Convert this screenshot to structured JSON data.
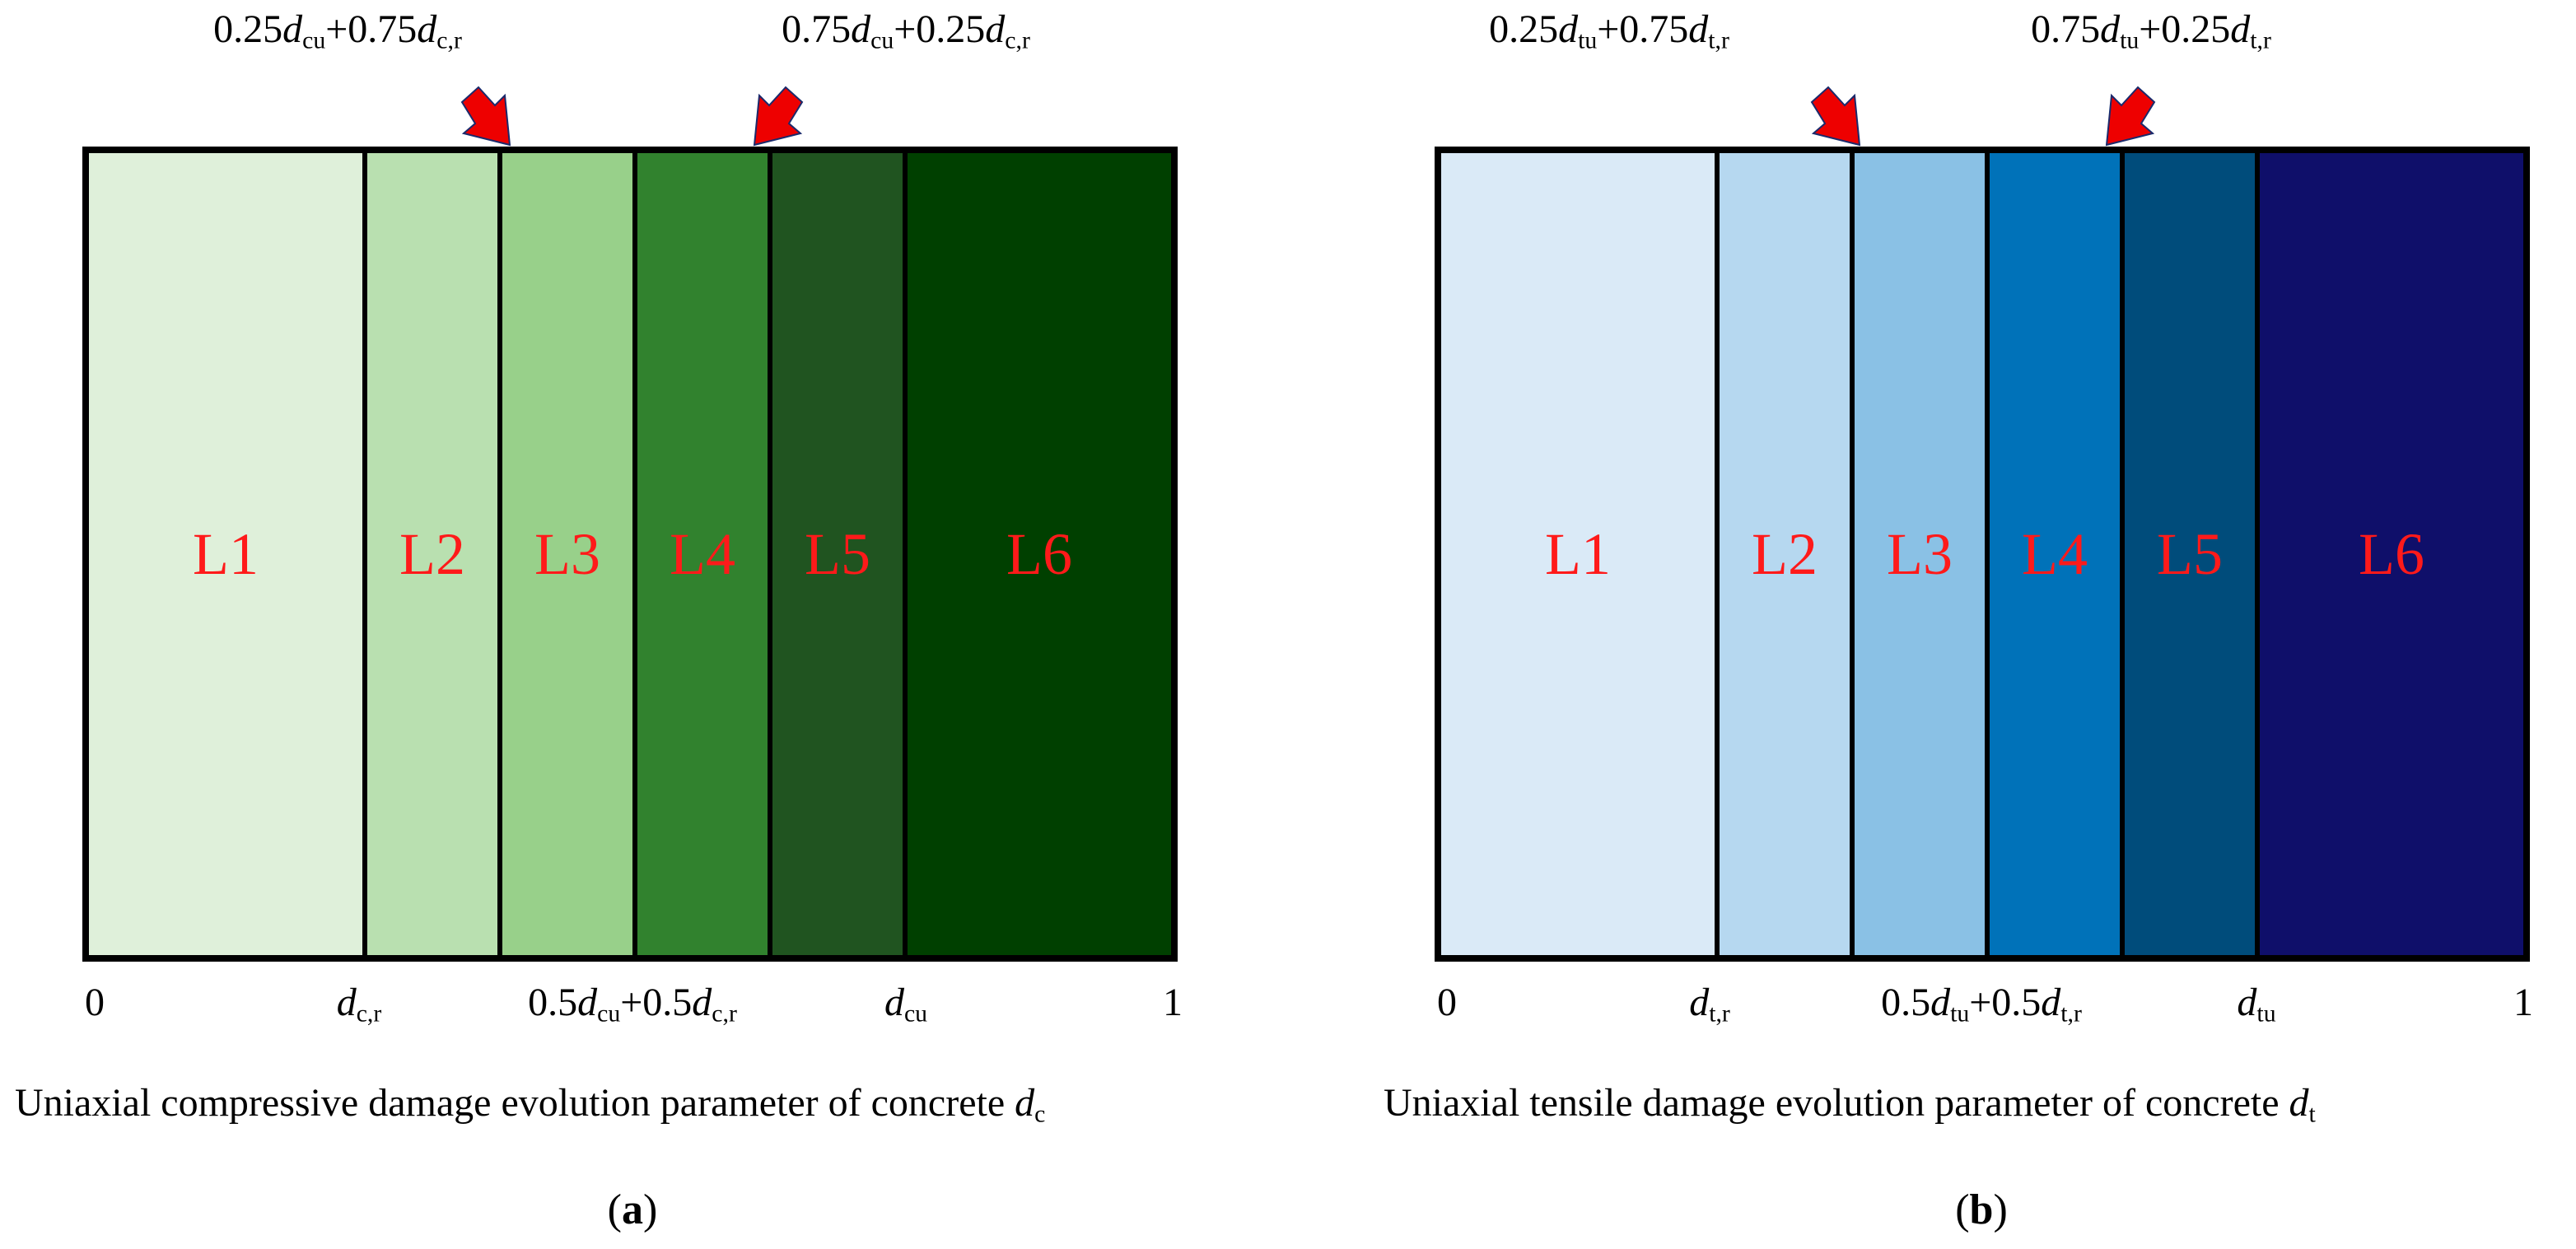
{
  "panels": [
    {
      "id": "a",
      "segments": [
        {
          "label": "L1",
          "color": "#dff0da"
        },
        {
          "label": "L2",
          "color": "#b9e0b0"
        },
        {
          "label": "L3",
          "color": "#98d08a"
        },
        {
          "label": "L4",
          "color": "#31822e"
        },
        {
          "label": "L5",
          "color": "#205420"
        },
        {
          "label": "L6",
          "color": "#004000"
        }
      ],
      "top_labels": {
        "left": {
          "c1": "0.25",
          "v1": "d",
          "s1": "cu",
          "plus": "+",
          "c2": "0.75",
          "v2": "d",
          "s2": "c,r"
        },
        "right": {
          "c1": "0.75",
          "v1": "d",
          "s1": "cu",
          "plus": "+",
          "c2": "0.25",
          "v2": "d",
          "s2": "c,r"
        }
      },
      "ticks": {
        "zero": "0",
        "d_r": {
          "v": "d",
          "s": "c,r"
        },
        "mid": {
          "c1": "0.5",
          "v1": "d",
          "s1": "cu",
          "plus": "+",
          "c2": "0.5",
          "v2": "d",
          "s2": "c,r"
        },
        "d_u": {
          "v": "d",
          "s": "cu"
        },
        "one": "1"
      },
      "axis_title": {
        "text": "Uniaxial compressive damage evolution parameter of concrete ",
        "v": "d",
        "s": "c"
      },
      "letter": {
        "open": "(",
        "l": "a",
        "close": ")"
      },
      "arrow_color": "#ee0000"
    },
    {
      "id": "b",
      "segments": [
        {
          "label": "L1",
          "color": "#daeaf7"
        },
        {
          "label": "L2",
          "color": "#b6d8f0"
        },
        {
          "label": "L3",
          "color": "#8ac1e5"
        },
        {
          "label": "L4",
          "color": "#0072b9"
        },
        {
          "label": "L5",
          "color": "#004c7b"
        },
        {
          "label": "L6",
          "color": "#0f0f6a"
        }
      ],
      "top_labels": {
        "left": {
          "c1": "0.25",
          "v1": "d",
          "s1": "tu",
          "plus": "+",
          "c2": "0.75",
          "v2": "d",
          "s2": "t,r"
        },
        "right": {
          "c1": "0.75",
          "v1": "d",
          "s1": "tu",
          "plus": "+",
          "c2": "0.25",
          "v2": "d",
          "s2": "t,r"
        }
      },
      "ticks": {
        "zero": "0",
        "d_r": {
          "v": "d",
          "s": "t,r"
        },
        "mid": {
          "c1": "0.5",
          "v1": "d",
          "s1": "tu",
          "plus": "+",
          "c2": "0.5",
          "v2": "d",
          "s2": "t,r"
        },
        "d_u": {
          "v": "d",
          "s": "tu"
        },
        "one": "1"
      },
      "axis_title": {
        "text": "Uniaxial tensile damage evolution parameter of concrete ",
        "v": "d",
        "s": "t"
      },
      "letter": {
        "open": "(",
        "l": "b",
        "close": ")"
      },
      "arrow_color": "#ee0000"
    }
  ]
}
